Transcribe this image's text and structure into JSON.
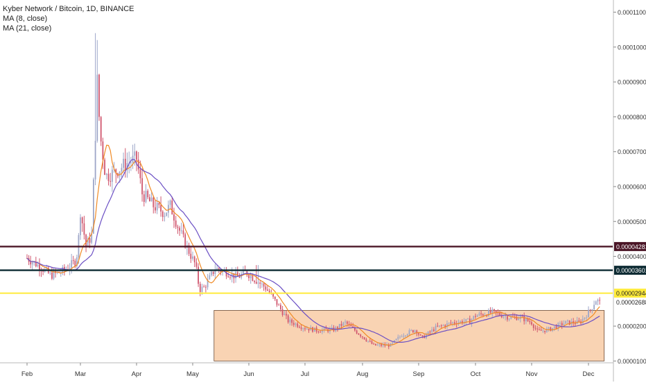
{
  "chart_data": {
    "type": "candlestick",
    "title": "Kyber Network / Bitcoin, 1D, BINANCE",
    "indicators": [
      {
        "name": "MA (8, close)",
        "color": "#f08a24"
      },
      {
        "name": "MA (21, close)",
        "color": "#6b4fc4"
      }
    ],
    "x_ticks": [
      "Feb",
      "Mar",
      "Apr",
      "May",
      "Jun",
      "Jul",
      "Aug",
      "Sep",
      "Oct",
      "Nov",
      "Dec"
    ],
    "y_ticks": [
      "0.00001000",
      "0.00002000",
      "0.00004000",
      "0.00005000",
      "0.00006000",
      "0.00007000",
      "0.00008000",
      "0.00009000",
      "0.00010000",
      "0.00011000"
    ],
    "ylim": [
      6.5e-06,
      0.0001115
    ],
    "horizontal_levels": [
      {
        "value": 4.281e-05,
        "label": "0.00004281",
        "color": "#4a1526"
      },
      {
        "value": 3.601e-05,
        "label": "0.00003601",
        "color": "#0d2b33"
      },
      {
        "value": 2.944e-05,
        "label": "0.00002944",
        "color": "#ffeb3b"
      }
    ],
    "last_price": {
      "value": 2.688e-05,
      "label": "0.00002688"
    },
    "range_box": {
      "from_month": "May",
      "to_month": "Dec",
      "low": 1e-05,
      "high": 2.45e-05,
      "fill": "#f8cba6"
    },
    "colors": {
      "up": "#9da6c8",
      "down": "#d0566e"
    },
    "price_path": [
      {
        "t": 0,
        "p": 3.95e-05
      },
      {
        "t": 0.25,
        "p": 3.7e-05
      },
      {
        "t": 0.45,
        "p": 3.45e-05
      },
      {
        "t": 0.7,
        "p": 3.6e-05
      },
      {
        "t": 0.9,
        "p": 3.85e-05
      },
      {
        "t": 0.95,
        "p": 4.15e-05
      },
      {
        "t": 1.0,
        "p": 5.3e-05
      },
      {
        "t": 1.1,
        "p": 4.3e-05
      },
      {
        "t": 1.2,
        "p": 4.6e-05
      },
      {
        "t": 1.3,
        "p": 9e-05
      },
      {
        "t": 1.35,
        "p": 7.5e-05
      },
      {
        "t": 1.45,
        "p": 6.3e-05
      },
      {
        "t": 1.6,
        "p": 6.4e-05
      },
      {
        "t": 1.8,
        "p": 6.65e-05
      },
      {
        "t": 2.0,
        "p": 6.8e-05
      },
      {
        "t": 2.1,
        "p": 5.8e-05
      },
      {
        "t": 2.3,
        "p": 5.45e-05
      },
      {
        "t": 2.5,
        "p": 5.25e-05
      },
      {
        "t": 2.6,
        "p": 5.45e-05
      },
      {
        "t": 2.75,
        "p": 4.8e-05
      },
      {
        "t": 2.9,
        "p": 4.25e-05
      },
      {
        "t": 3.05,
        "p": 3.75e-05
      },
      {
        "t": 3.12,
        "p": 3.05e-05
      },
      {
        "t": 3.2,
        "p": 3.1e-05
      },
      {
        "t": 3.4,
        "p": 3.65e-05
      },
      {
        "t": 3.6,
        "p": 3.55e-05
      },
      {
        "t": 3.8,
        "p": 3.4e-05
      },
      {
        "t": 3.95,
        "p": 3.55e-05
      },
      {
        "t": 4.1,
        "p": 3.35e-05
      },
      {
        "t": 4.3,
        "p": 3.1e-05
      },
      {
        "t": 4.5,
        "p": 2.65e-05
      },
      {
        "t": 4.7,
        "p": 2.15e-05
      },
      {
        "t": 5.0,
        "p": 1.95e-05
      },
      {
        "t": 5.2,
        "p": 1.88e-05
      },
      {
        "t": 5.5,
        "p": 1.9e-05
      },
      {
        "t": 5.7,
        "p": 2.1e-05
      },
      {
        "t": 6.0,
        "p": 1.7e-05
      },
      {
        "t": 6.2,
        "p": 1.45e-05
      },
      {
        "t": 6.5,
        "p": 1.45e-05
      },
      {
        "t": 6.7,
        "p": 1.75e-05
      },
      {
        "t": 6.95,
        "p": 1.9e-05
      },
      {
        "t": 7.05,
        "p": 1.65e-05
      },
      {
        "t": 7.3,
        "p": 1.95e-05
      },
      {
        "t": 7.6,
        "p": 2.1e-05
      },
      {
        "t": 7.9,
        "p": 2.15e-05
      },
      {
        "t": 8.0,
        "p": 2.3e-05
      },
      {
        "t": 8.3,
        "p": 2.4e-05
      },
      {
        "t": 8.6,
        "p": 2.25e-05
      },
      {
        "t": 8.8,
        "p": 2.25e-05
      },
      {
        "t": 9.0,
        "p": 2.1e-05
      },
      {
        "t": 9.1,
        "p": 1.85e-05
      },
      {
        "t": 9.3,
        "p": 1.9e-05
      },
      {
        "t": 9.6,
        "p": 2.1e-05
      },
      {
        "t": 9.85,
        "p": 2.1e-05
      },
      {
        "t": 10.05,
        "p": 2.5e-05
      },
      {
        "t": 10.13,
        "p": 2.75e-05
      },
      {
        "t": 10.2,
        "p": 2.688e-05
      }
    ]
  }
}
